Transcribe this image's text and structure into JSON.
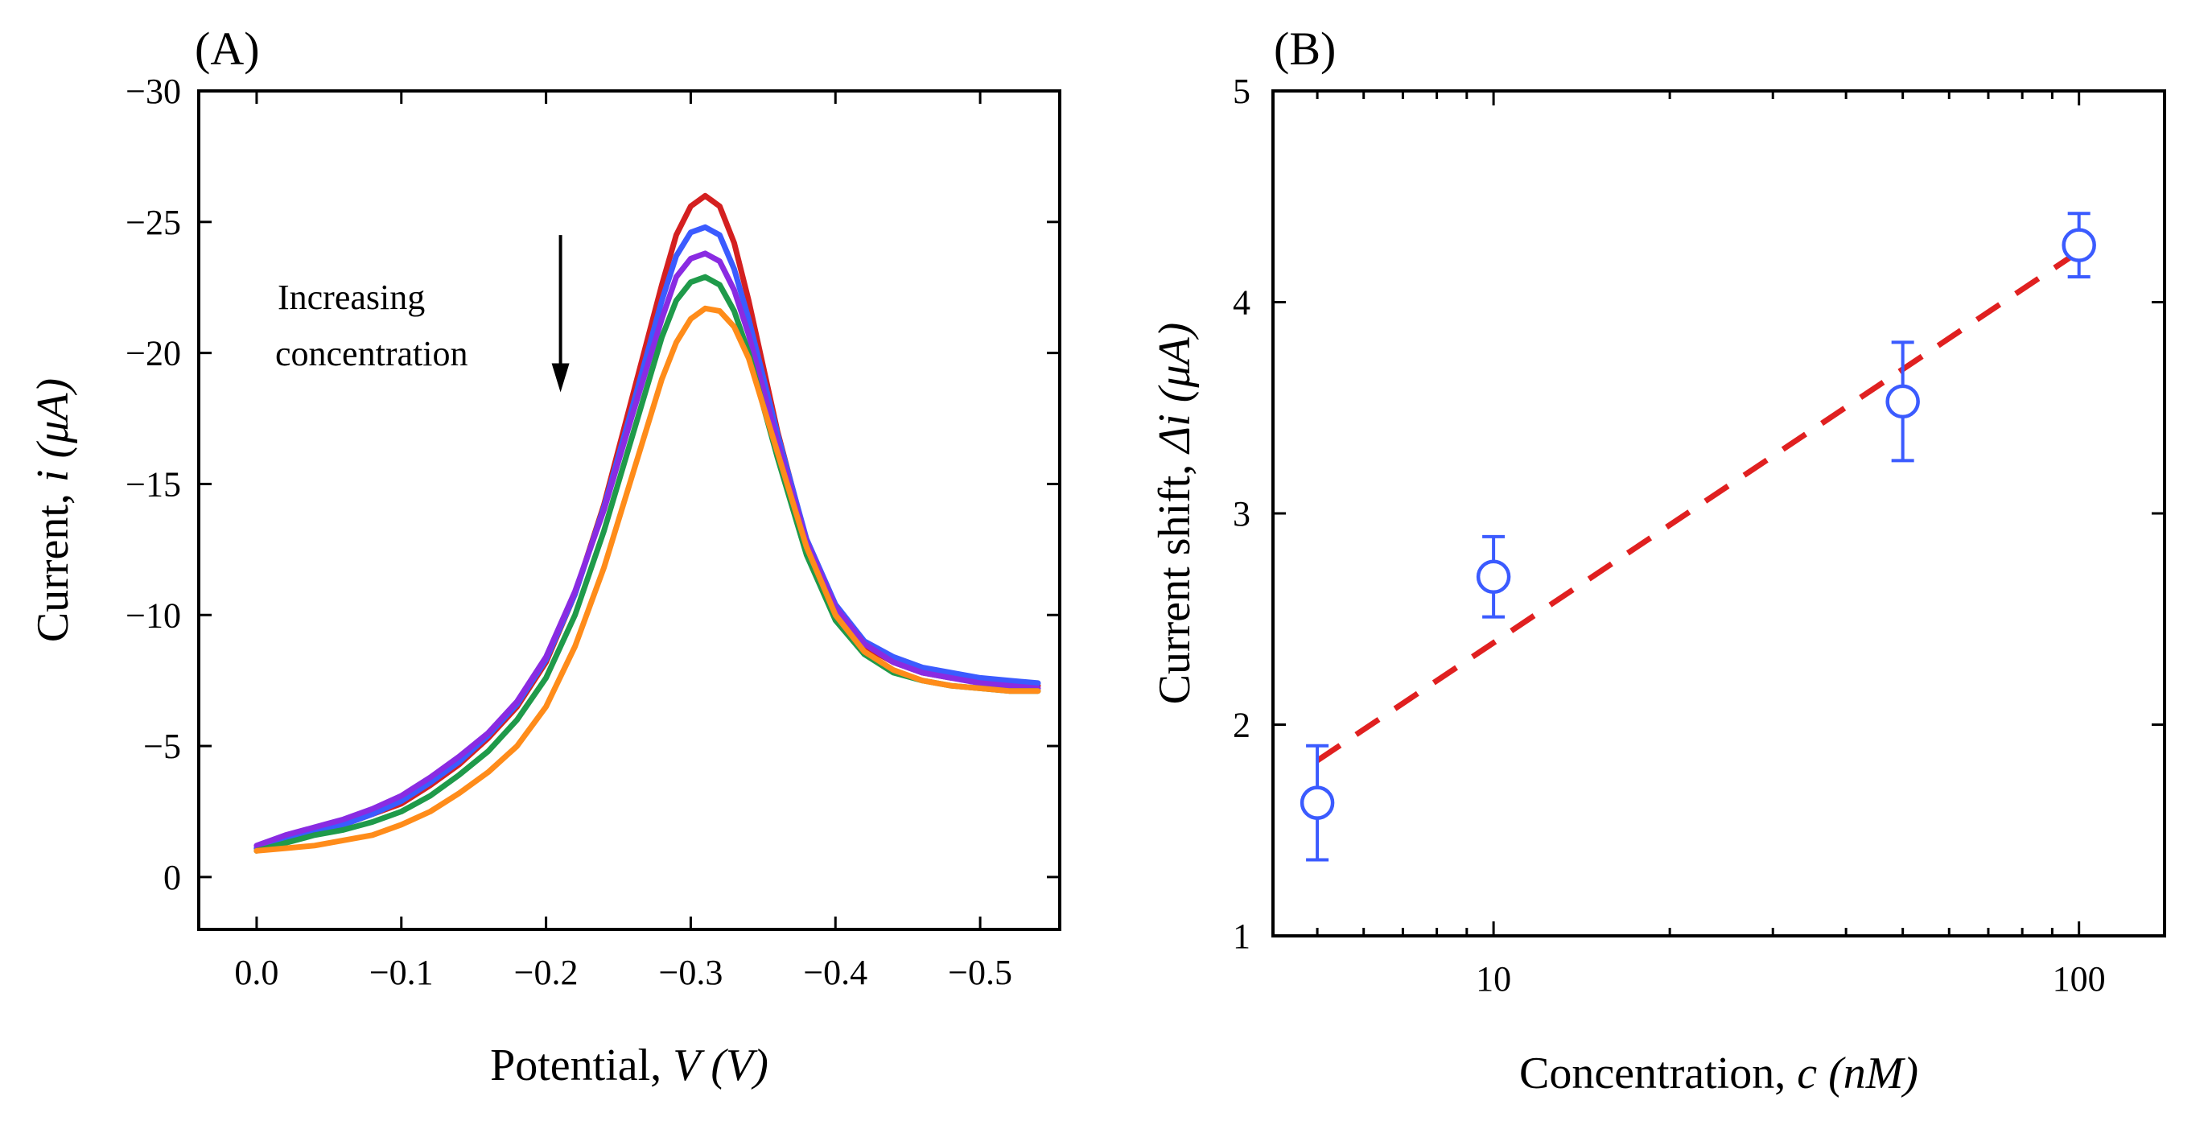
{
  "figure": {
    "panel_a_label": "(A)",
    "panel_b_label": "(B)"
  },
  "chart_data": [
    {
      "type": "line",
      "panel": "(A)",
      "xlabel_prefix": "Potential, ",
      "xlabel_var": "V",
      "xlabel_unit": " (V)",
      "ylabel_prefix": "Current, ",
      "ylabel_var": "i",
      "ylabel_unit": " (μA)",
      "xlim": [
        0.04,
        -0.555
      ],
      "ylim": [
        2,
        -30
      ],
      "x_ticks": [
        0.0,
        -0.1,
        -0.2,
        -0.3,
        -0.4,
        -0.5
      ],
      "x_tick_labels": [
        "0.0",
        "−0.1",
        "−0.2",
        "−0.3",
        "−0.4",
        "−0.5"
      ],
      "y_ticks": [
        0,
        -5,
        -10,
        -15,
        -20,
        -25,
        -30
      ],
      "y_tick_labels": [
        "0",
        "−5",
        "−10",
        "−15",
        "−20",
        "−25",
        "−30"
      ],
      "annotation": [
        "Increasing",
        "concentration"
      ],
      "arrow": {
        "x": -0.21,
        "y_from": -24.5,
        "y_to": -18.5
      },
      "x": [
        0.0,
        -0.02,
        -0.04,
        -0.06,
        -0.08,
        -0.1,
        -0.12,
        -0.14,
        -0.16,
        -0.18,
        -0.2,
        -0.22,
        -0.24,
        -0.26,
        -0.28,
        -0.29,
        -0.3,
        -0.31,
        -0.32,
        -0.33,
        -0.34,
        -0.36,
        -0.38,
        -0.4,
        -0.42,
        -0.44,
        -0.46,
        -0.48,
        -0.5,
        -0.52,
        -0.54
      ],
      "series": [
        {
          "name": "red",
          "color": "#d42020",
          "values": [
            -1.1,
            -1.5,
            -1.8,
            -2.0,
            -2.4,
            -2.8,
            -3.5,
            -4.3,
            -5.3,
            -6.5,
            -8.2,
            -10.8,
            -14.2,
            -18.4,
            -22.6,
            -24.5,
            -25.6,
            -26.0,
            -25.6,
            -24.2,
            -22.0,
            -17.0,
            -12.8,
            -10.2,
            -8.8,
            -8.2,
            -7.8,
            -7.6,
            -7.5,
            -7.4,
            -7.3
          ]
        },
        {
          "name": "blue",
          "color": "#3b5bff",
          "values": [
            -1.1,
            -1.5,
            -1.8,
            -2.0,
            -2.4,
            -2.9,
            -3.6,
            -4.4,
            -5.4,
            -6.6,
            -8.3,
            -10.8,
            -14.1,
            -18.0,
            -22.0,
            -23.7,
            -24.6,
            -24.8,
            -24.5,
            -23.2,
            -21.3,
            -16.9,
            -12.9,
            -10.4,
            -9.0,
            -8.4,
            -8.0,
            -7.8,
            -7.6,
            -7.5,
            -7.4
          ]
        },
        {
          "name": "violet",
          "color": "#8a2be2",
          "values": [
            -1.2,
            -1.6,
            -1.9,
            -2.2,
            -2.6,
            -3.1,
            -3.8,
            -4.6,
            -5.5,
            -6.7,
            -8.4,
            -10.9,
            -14.0,
            -17.7,
            -21.3,
            -22.9,
            -23.6,
            -23.8,
            -23.5,
            -22.4,
            -20.7,
            -16.6,
            -12.8,
            -10.3,
            -8.9,
            -8.2,
            -7.8,
            -7.6,
            -7.4,
            -7.3,
            -7.2
          ]
        },
        {
          "name": "green",
          "color": "#1f9a4a",
          "values": [
            -1.0,
            -1.3,
            -1.6,
            -1.8,
            -2.1,
            -2.5,
            -3.1,
            -3.9,
            -4.8,
            -6.0,
            -7.6,
            -10.0,
            -13.2,
            -16.9,
            -20.6,
            -22.0,
            -22.7,
            -22.9,
            -22.6,
            -21.6,
            -20.0,
            -16.0,
            -12.3,
            -9.8,
            -8.5,
            -7.8,
            -7.5,
            -7.3,
            -7.2,
            -7.1,
            -7.1
          ]
        },
        {
          "name": "orange",
          "color": "#ff8c1a",
          "values": [
            -1.0,
            -1.1,
            -1.2,
            -1.4,
            -1.6,
            -2.0,
            -2.5,
            -3.2,
            -4.0,
            -5.0,
            -6.5,
            -8.8,
            -11.8,
            -15.4,
            -19.0,
            -20.4,
            -21.3,
            -21.7,
            -21.6,
            -21.0,
            -19.8,
            -16.2,
            -12.6,
            -10.0,
            -8.6,
            -7.9,
            -7.5,
            -7.3,
            -7.2,
            -7.1,
            -7.1
          ]
        }
      ]
    },
    {
      "type": "scatter",
      "panel": "(B)",
      "xscale": "log",
      "xlabel_prefix": "Concentration, ",
      "xlabel_var": "c",
      "xlabel_unit": " (nM)",
      "ylabel_prefix": "Current shift, ",
      "ylabel_var": "Δi",
      "ylabel_unit": " (μA)",
      "xlim": [
        4.2,
        140
      ],
      "ylim": [
        1,
        5
      ],
      "x_ticks": [
        10,
        100
      ],
      "x_tick_labels": [
        "10",
        "100"
      ],
      "y_ticks": [
        1,
        2,
        3,
        4,
        5
      ],
      "y_tick_labels": [
        "1",
        "2",
        "3",
        "4",
        "5"
      ],
      "points": [
        {
          "x": 5,
          "y": 1.63,
          "err": 0.27
        },
        {
          "x": 10,
          "y": 2.7,
          "err": 0.19
        },
        {
          "x": 50,
          "y": 3.53,
          "err": 0.28
        },
        {
          "x": 100,
          "y": 4.27,
          "err": 0.15
        }
      ],
      "marker_color": "#3b5bff",
      "fit_line": {
        "x": [
          5,
          100
        ],
        "y": [
          1.83,
          4.24
        ],
        "color": "#e02020",
        "style": "dashed"
      }
    }
  ]
}
